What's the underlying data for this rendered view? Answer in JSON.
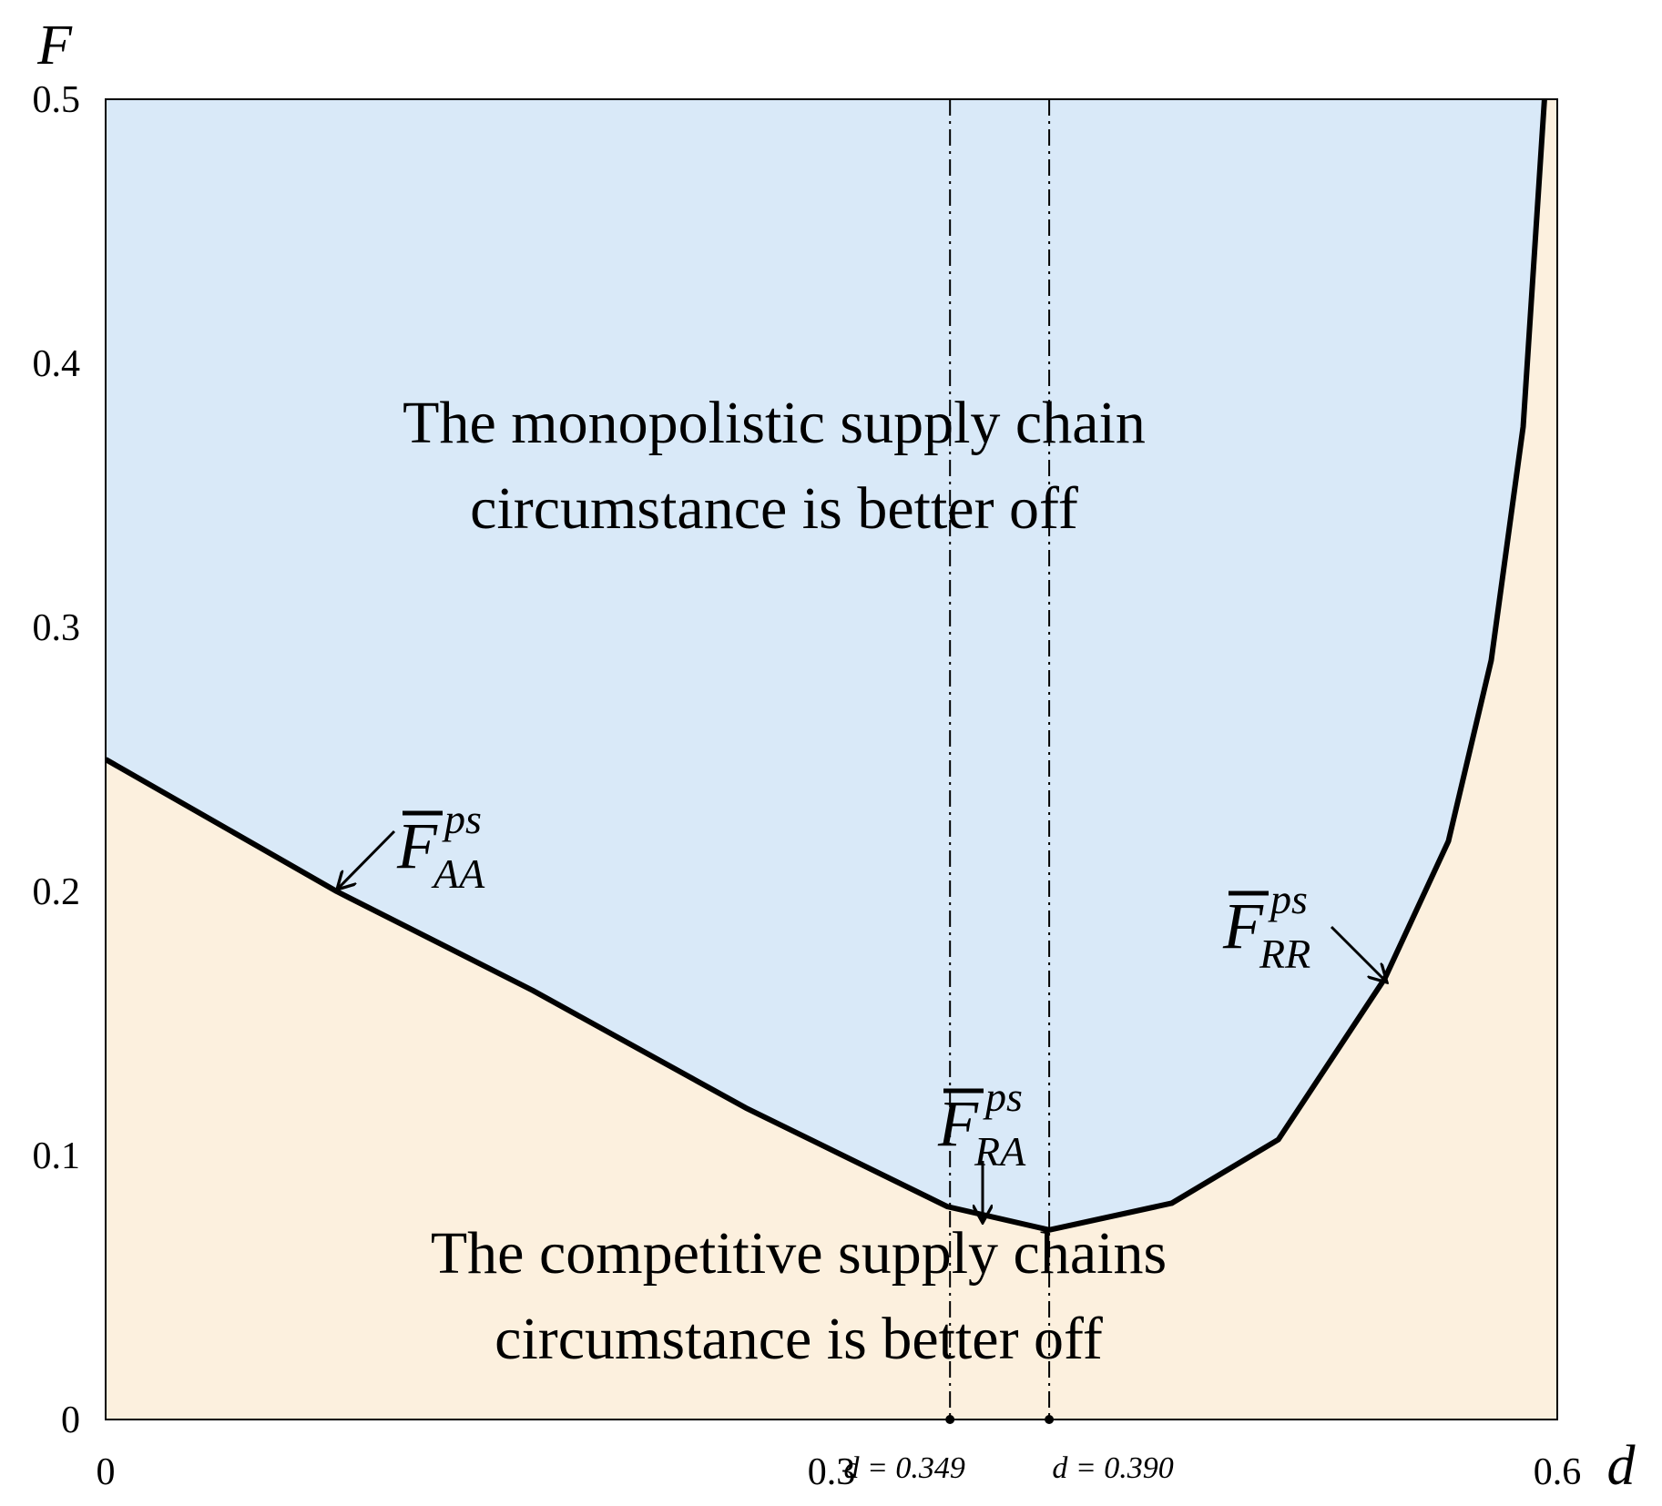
{
  "chart_data": {
    "type": "line",
    "x_label": "d",
    "y_label": "F",
    "xlim": [
      0,
      0.6
    ],
    "ylim": [
      0,
      0.5
    ],
    "xticks": [
      0,
      0.3,
      0.6
    ],
    "yticks": [
      0,
      0.1,
      0.2,
      0.3,
      0.4,
      0.5
    ],
    "series": [
      {
        "color": "#000000",
        "x": [
          0,
          0.0955,
          0.1765,
          0.2646,
          0.348,
          0.39,
          0.4406,
          0.4847,
          0.5287,
          0.555,
          0.5727,
          0.5859,
          0.5947
        ],
        "values": [
          0.25,
          0.2,
          0.1625,
          0.118,
          0.0806,
          0.0718,
          0.0819,
          0.106,
          0.167,
          0.219,
          0.2875,
          0.376,
          0.5
        ]
      }
    ],
    "fill_above": "#d9e9f8",
    "fill_below": "#fcf0de",
    "vlines": [
      {
        "value": 0.349,
        "label": "d = 0.349"
      },
      {
        "value": 0.39,
        "label": "d = 0.390"
      }
    ],
    "regions": [
      {
        "lines": [
          "The monopolistic supply chain",
          "circumstance is better off"
        ]
      },
      {
        "lines": [
          "The competitive supply chains",
          "circumstance is better off"
        ]
      }
    ],
    "curve_labels": [
      {
        "base": "F",
        "sup": "ps",
        "sub": "AA"
      },
      {
        "base": "F",
        "sup": "ps",
        "sub": "RA"
      },
      {
        "base": "F",
        "sup": "ps",
        "sub": "RR"
      }
    ]
  }
}
